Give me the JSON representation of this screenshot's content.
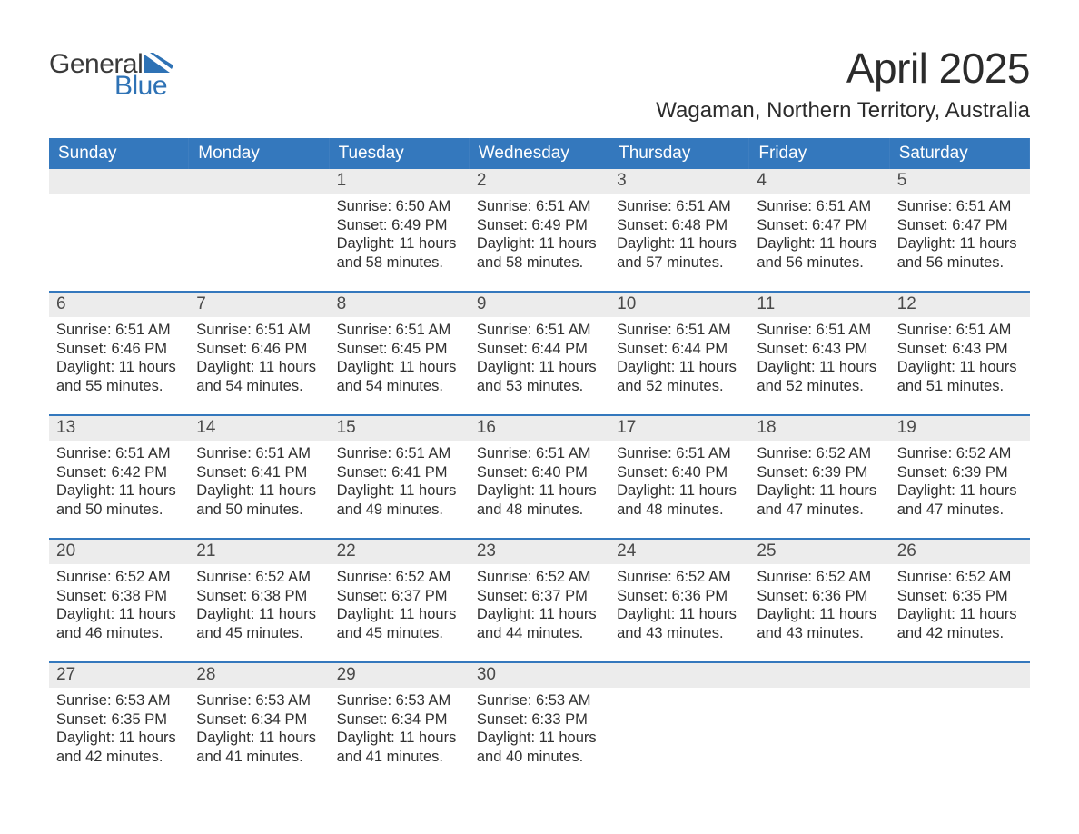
{
  "logo": {
    "text1": "General",
    "text2": "Blue",
    "arrow_color": "#2e72b5"
  },
  "title": "April 2025",
  "location": "Wagaman, Northern Territory, Australia",
  "colors": {
    "header_bg": "#3478bd",
    "header_text": "#ffffff",
    "daynum_bg": "#ececec",
    "daynum_text": "#4a4a4a",
    "body_text": "#303030",
    "week_border": "#3478bd",
    "logo_blue": "#2e72b5",
    "background": "#ffffff"
  },
  "typography": {
    "title_fontsize": 46,
    "location_fontsize": 24,
    "dayheader_fontsize": 19,
    "daynum_fontsize": 19,
    "body_fontsize": 16.5,
    "logo_fontsize": 30,
    "font_family": "Arial"
  },
  "layout": {
    "columns": 7,
    "rows": 5,
    "cell_min_height": 134
  },
  "day_headers": [
    "Sunday",
    "Monday",
    "Tuesday",
    "Wednesday",
    "Thursday",
    "Friday",
    "Saturday"
  ],
  "weeks": [
    [
      {
        "num": "",
        "sunrise": "",
        "sunset": "",
        "daylight": ""
      },
      {
        "num": "",
        "sunrise": "",
        "sunset": "",
        "daylight": ""
      },
      {
        "num": "1",
        "sunrise": "Sunrise: 6:50 AM",
        "sunset": "Sunset: 6:49 PM",
        "daylight": "Daylight: 11 hours and 58 minutes."
      },
      {
        "num": "2",
        "sunrise": "Sunrise: 6:51 AM",
        "sunset": "Sunset: 6:49 PM",
        "daylight": "Daylight: 11 hours and 58 minutes."
      },
      {
        "num": "3",
        "sunrise": "Sunrise: 6:51 AM",
        "sunset": "Sunset: 6:48 PM",
        "daylight": "Daylight: 11 hours and 57 minutes."
      },
      {
        "num": "4",
        "sunrise": "Sunrise: 6:51 AM",
        "sunset": "Sunset: 6:47 PM",
        "daylight": "Daylight: 11 hours and 56 minutes."
      },
      {
        "num": "5",
        "sunrise": "Sunrise: 6:51 AM",
        "sunset": "Sunset: 6:47 PM",
        "daylight": "Daylight: 11 hours and 56 minutes."
      }
    ],
    [
      {
        "num": "6",
        "sunrise": "Sunrise: 6:51 AM",
        "sunset": "Sunset: 6:46 PM",
        "daylight": "Daylight: 11 hours and 55 minutes."
      },
      {
        "num": "7",
        "sunrise": "Sunrise: 6:51 AM",
        "sunset": "Sunset: 6:46 PM",
        "daylight": "Daylight: 11 hours and 54 minutes."
      },
      {
        "num": "8",
        "sunrise": "Sunrise: 6:51 AM",
        "sunset": "Sunset: 6:45 PM",
        "daylight": "Daylight: 11 hours and 54 minutes."
      },
      {
        "num": "9",
        "sunrise": "Sunrise: 6:51 AM",
        "sunset": "Sunset: 6:44 PM",
        "daylight": "Daylight: 11 hours and 53 minutes."
      },
      {
        "num": "10",
        "sunrise": "Sunrise: 6:51 AM",
        "sunset": "Sunset: 6:44 PM",
        "daylight": "Daylight: 11 hours and 52 minutes."
      },
      {
        "num": "11",
        "sunrise": "Sunrise: 6:51 AM",
        "sunset": "Sunset: 6:43 PM",
        "daylight": "Daylight: 11 hours and 52 minutes."
      },
      {
        "num": "12",
        "sunrise": "Sunrise: 6:51 AM",
        "sunset": "Sunset: 6:43 PM",
        "daylight": "Daylight: 11 hours and 51 minutes."
      }
    ],
    [
      {
        "num": "13",
        "sunrise": "Sunrise: 6:51 AM",
        "sunset": "Sunset: 6:42 PM",
        "daylight": "Daylight: 11 hours and 50 minutes."
      },
      {
        "num": "14",
        "sunrise": "Sunrise: 6:51 AM",
        "sunset": "Sunset: 6:41 PM",
        "daylight": "Daylight: 11 hours and 50 minutes."
      },
      {
        "num": "15",
        "sunrise": "Sunrise: 6:51 AM",
        "sunset": "Sunset: 6:41 PM",
        "daylight": "Daylight: 11 hours and 49 minutes."
      },
      {
        "num": "16",
        "sunrise": "Sunrise: 6:51 AM",
        "sunset": "Sunset: 6:40 PM",
        "daylight": "Daylight: 11 hours and 48 minutes."
      },
      {
        "num": "17",
        "sunrise": "Sunrise: 6:51 AM",
        "sunset": "Sunset: 6:40 PM",
        "daylight": "Daylight: 11 hours and 48 minutes."
      },
      {
        "num": "18",
        "sunrise": "Sunrise: 6:52 AM",
        "sunset": "Sunset: 6:39 PM",
        "daylight": "Daylight: 11 hours and 47 minutes."
      },
      {
        "num": "19",
        "sunrise": "Sunrise: 6:52 AM",
        "sunset": "Sunset: 6:39 PM",
        "daylight": "Daylight: 11 hours and 47 minutes."
      }
    ],
    [
      {
        "num": "20",
        "sunrise": "Sunrise: 6:52 AM",
        "sunset": "Sunset: 6:38 PM",
        "daylight": "Daylight: 11 hours and 46 minutes."
      },
      {
        "num": "21",
        "sunrise": "Sunrise: 6:52 AM",
        "sunset": "Sunset: 6:38 PM",
        "daylight": "Daylight: 11 hours and 45 minutes."
      },
      {
        "num": "22",
        "sunrise": "Sunrise: 6:52 AM",
        "sunset": "Sunset: 6:37 PM",
        "daylight": "Daylight: 11 hours and 45 minutes."
      },
      {
        "num": "23",
        "sunrise": "Sunrise: 6:52 AM",
        "sunset": "Sunset: 6:37 PM",
        "daylight": "Daylight: 11 hours and 44 minutes."
      },
      {
        "num": "24",
        "sunrise": "Sunrise: 6:52 AM",
        "sunset": "Sunset: 6:36 PM",
        "daylight": "Daylight: 11 hours and 43 minutes."
      },
      {
        "num": "25",
        "sunrise": "Sunrise: 6:52 AM",
        "sunset": "Sunset: 6:36 PM",
        "daylight": "Daylight: 11 hours and 43 minutes."
      },
      {
        "num": "26",
        "sunrise": "Sunrise: 6:52 AM",
        "sunset": "Sunset: 6:35 PM",
        "daylight": "Daylight: 11 hours and 42 minutes."
      }
    ],
    [
      {
        "num": "27",
        "sunrise": "Sunrise: 6:53 AM",
        "sunset": "Sunset: 6:35 PM",
        "daylight": "Daylight: 11 hours and 42 minutes."
      },
      {
        "num": "28",
        "sunrise": "Sunrise: 6:53 AM",
        "sunset": "Sunset: 6:34 PM",
        "daylight": "Daylight: 11 hours and 41 minutes."
      },
      {
        "num": "29",
        "sunrise": "Sunrise: 6:53 AM",
        "sunset": "Sunset: 6:34 PM",
        "daylight": "Daylight: 11 hours and 41 minutes."
      },
      {
        "num": "30",
        "sunrise": "Sunrise: 6:53 AM",
        "sunset": "Sunset: 6:33 PM",
        "daylight": "Daylight: 11 hours and 40 minutes."
      },
      {
        "num": "",
        "sunrise": "",
        "sunset": "",
        "daylight": ""
      },
      {
        "num": "",
        "sunrise": "",
        "sunset": "",
        "daylight": ""
      },
      {
        "num": "",
        "sunrise": "",
        "sunset": "",
        "daylight": ""
      }
    ]
  ]
}
